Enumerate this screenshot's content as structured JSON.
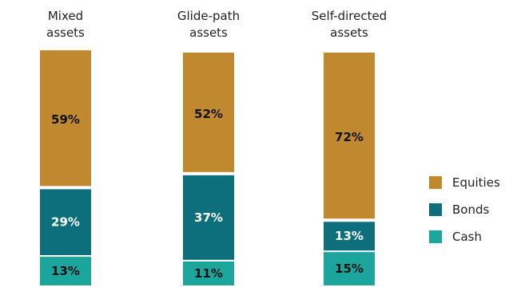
{
  "chart_data": {
    "type": "bar",
    "stacked": true,
    "categories": [
      [
        "Mixed",
        "assets"
      ],
      [
        "Glide-path",
        "assets"
      ],
      [
        "Self-directed",
        "assets"
      ]
    ],
    "series": [
      {
        "name": "Cash",
        "values": [
          13,
          11,
          15
        ],
        "color": "#1BA59C",
        "label_color": "#111111",
        "labels": [
          "13%",
          "11%",
          "15%"
        ]
      },
      {
        "name": "Bonds",
        "values": [
          29,
          37,
          13
        ],
        "color": "#0E6F7C",
        "label_color": "#ffffff",
        "labels": [
          "29%",
          "37%",
          "13%"
        ]
      },
      {
        "name": "Equities",
        "values": [
          59,
          52,
          72
        ],
        "color": "#C0892F",
        "label_color": "#111111",
        "labels": [
          "59%",
          "52%",
          "72%"
        ]
      }
    ],
    "legend": {
      "placement": "right",
      "order": [
        "Equities",
        "Bonds",
        "Cash"
      ]
    },
    "grid": false
  }
}
